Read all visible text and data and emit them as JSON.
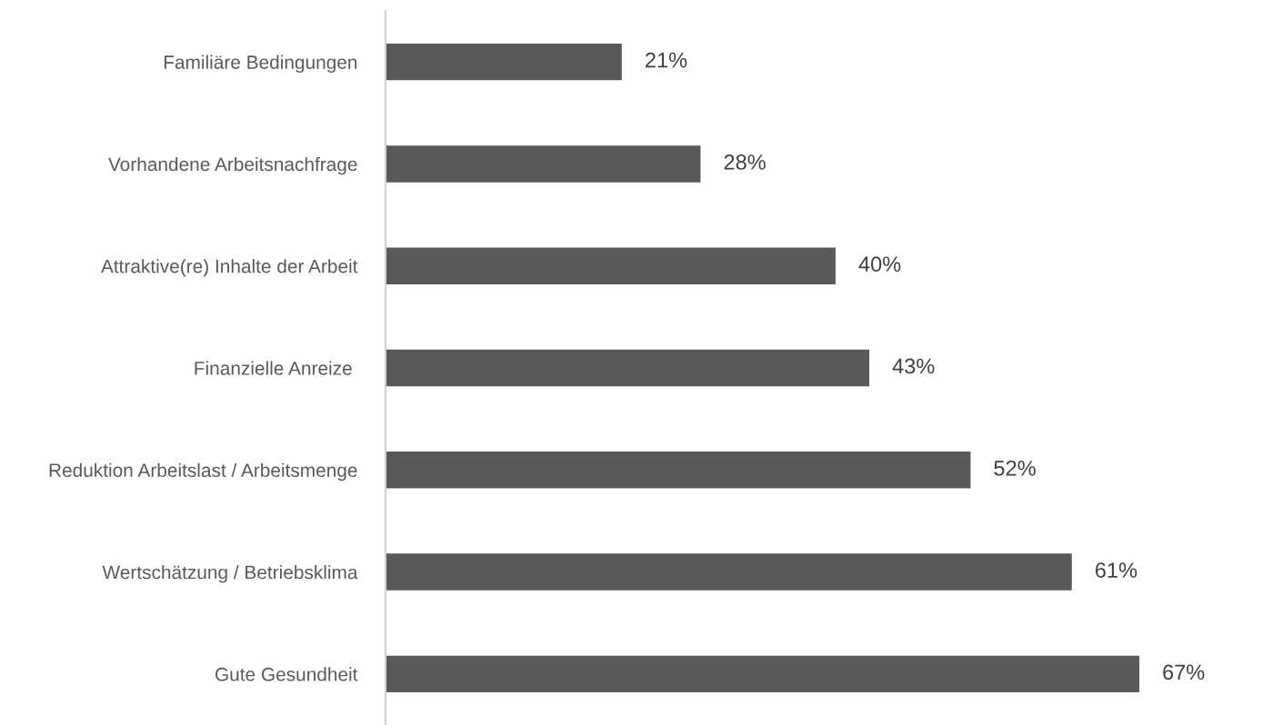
{
  "chart_data": {
    "type": "bar",
    "orientation": "horizontal",
    "categories": [
      "Familiäre Bedingungen",
      "Vorhandene Arbeitsnachfrage",
      "Attraktive(re) Inhalte der Arbeit",
      "Finanzielle Anreize ",
      "Reduktion Arbeitslast / Arbeitsmenge",
      "Wertschätzung / Betriebsklima",
      "Gute Gesundheit"
    ],
    "values": [
      21,
      28,
      40,
      43,
      52,
      61,
      67
    ],
    "value_labels": [
      "21%",
      "28%",
      "40%",
      "43%",
      "52%",
      "61%",
      "67%"
    ],
    "color": "#595959",
    "tick_labels": "y",
    "grid": false,
    "legend": false
  }
}
